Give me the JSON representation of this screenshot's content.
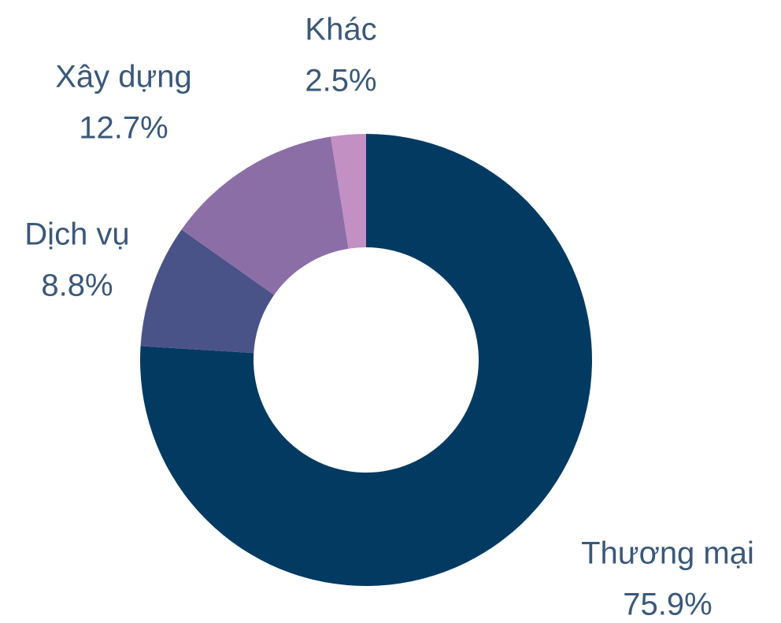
{
  "chart_data": {
    "type": "donut",
    "categories": [
      "Thương mại",
      "Dịch vụ",
      "Xây dựng",
      "Khác"
    ],
    "values": [
      75.9,
      8.8,
      12.7,
      2.5
    ],
    "value_labels": [
      "75.9%",
      "8.8%",
      "12.7%",
      "2.5%"
    ],
    "colors": [
      "#023a62",
      "#4a5388",
      "#8c6ea7",
      "#c290c2"
    ]
  }
}
